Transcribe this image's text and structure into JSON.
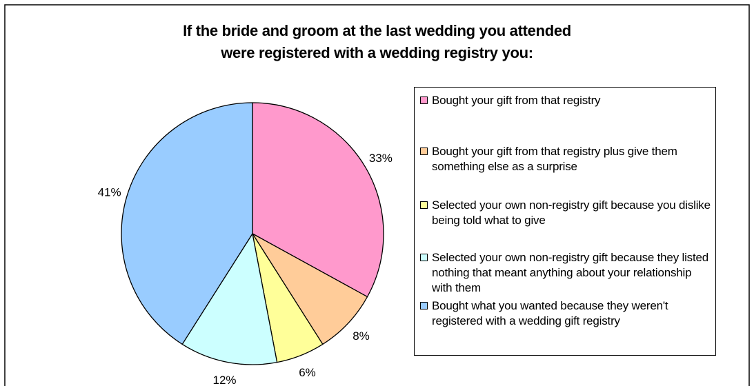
{
  "chart_data": {
    "type": "pie",
    "title_lines": [
      "If the bride and groom at the last wedding you attended",
      "were registered with a wedding registry you:"
    ],
    "legend_position": "right",
    "slices": [
      {
        "label": "Bought your gift from that registry",
        "value": 33,
        "display": "33%",
        "color": "#ff99cc"
      },
      {
        "label": "Bought your gift from that registry plus give them something else as a surprise",
        "value": 8,
        "display": "8%",
        "color": "#ffcc99"
      },
      {
        "label": "Selected your own non-registry gift because you dislike being told what to give",
        "value": 6,
        "display": "6%",
        "color": "#ffff99"
      },
      {
        "label": "Selected your own non-registry gift because they listed nothing that meant anything about your relationship with them",
        "value": 12,
        "display": "12%",
        "color": "#ccffff"
      },
      {
        "label": "Bought what you wanted because they weren't registered with a wedding gift registry",
        "value": 41,
        "display": "41%",
        "color": "#99ccff"
      }
    ]
  }
}
